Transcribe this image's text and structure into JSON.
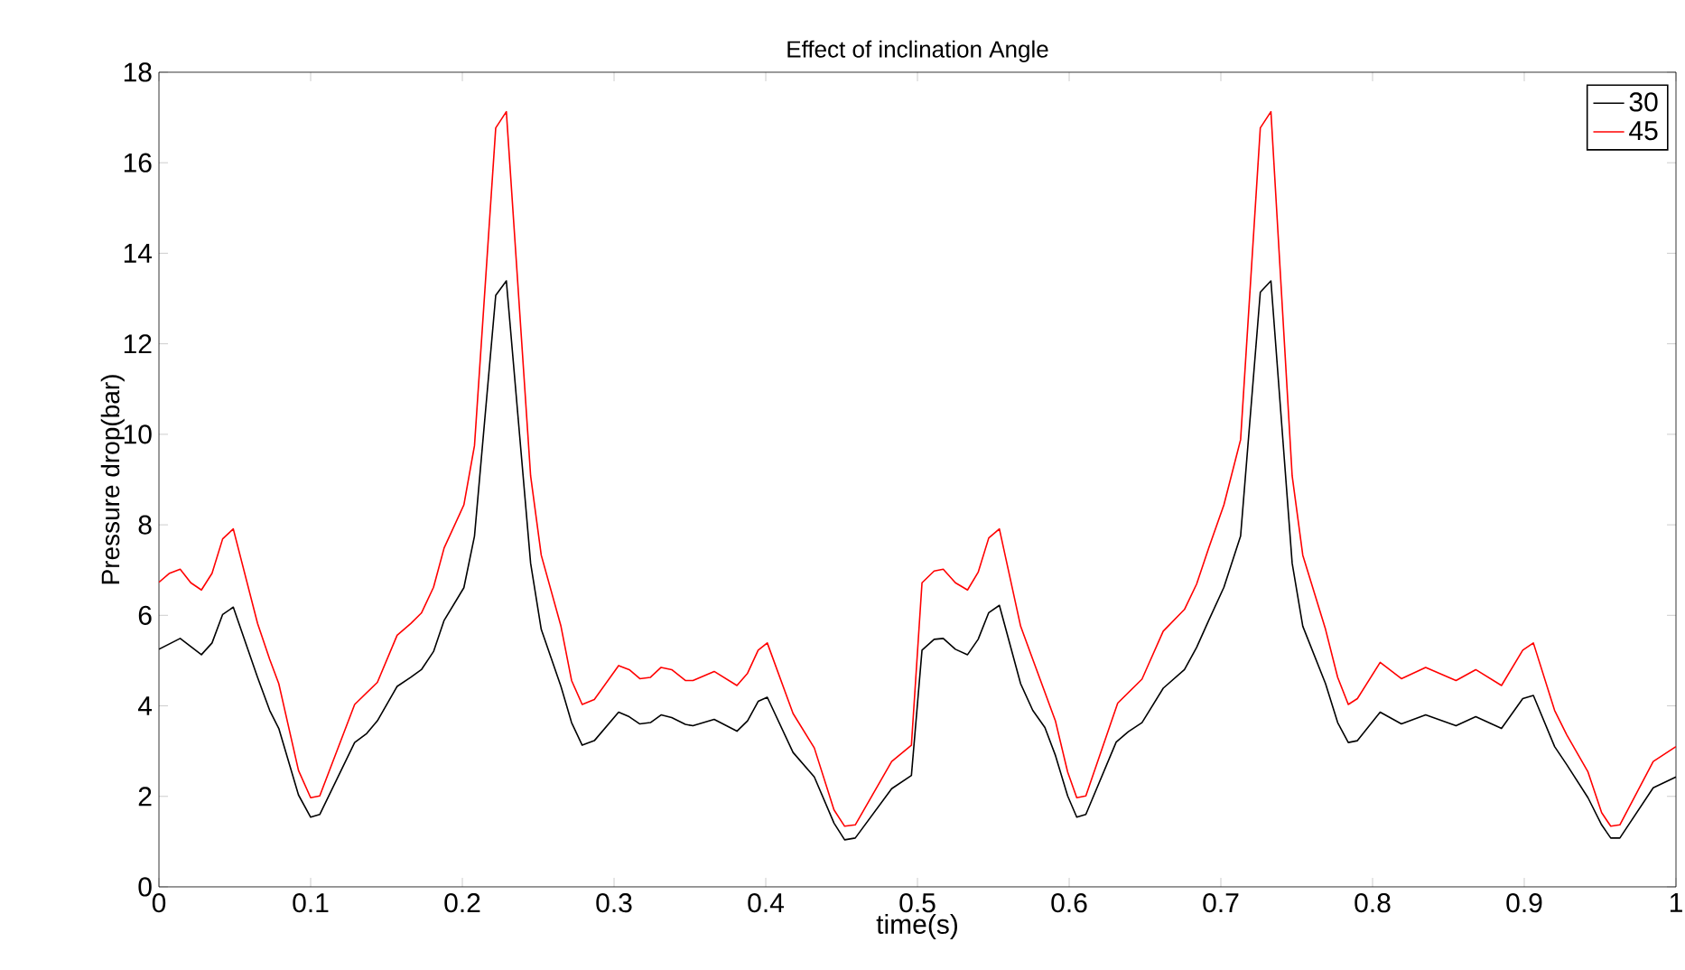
{
  "chart_data": {
    "type": "line",
    "title": "Effect of inclination Angle",
    "xlabel": "time(s)",
    "ylabel": "Pressure drop(bar)",
    "xlim": [
      0,
      1
    ],
    "ylim": [
      0,
      18
    ],
    "xticks": [
      0,
      0.1,
      0.2,
      0.3,
      0.4,
      0.5,
      0.6,
      0.7,
      0.8,
      0.9,
      1
    ],
    "yticks": [
      0,
      2,
      4,
      6,
      8,
      10,
      12,
      14,
      16,
      18
    ],
    "grid": false,
    "legend": "top right",
    "marker": "none",
    "line_style": "solid",
    "series": [
      {
        "name": "30",
        "color": "#000000",
        "x": [
          0,
          0.014,
          0.028,
          0.035,
          0.042,
          0.049,
          0.065,
          0.073,
          0.079,
          0.092,
          0.1,
          0.106,
          0.129,
          0.137,
          0.144,
          0.157,
          0.166,
          0.173,
          0.181,
          0.188,
          0.201,
          0.208,
          0.222,
          0.229,
          0.245,
          0.252,
          0.265,
          0.272,
          0.279,
          0.287,
          0.303,
          0.31,
          0.317,
          0.324,
          0.331,
          0.338,
          0.347,
          0.352,
          0.366,
          0.381,
          0.388,
          0.395,
          0.401,
          0.418,
          0.432,
          0.445,
          0.452,
          0.459,
          0.483,
          0.496,
          0.503,
          0.511,
          0.517,
          0.525,
          0.533,
          0.54,
          0.547,
          0.554,
          0.568,
          0.576,
          0.584,
          0.591,
          0.599,
          0.605,
          0.611,
          0.631,
          0.639,
          0.648,
          0.662,
          0.676,
          0.684,
          0.692,
          0.702,
          0.713,
          0.726,
          0.733,
          0.747,
          0.754,
          0.769,
          0.777,
          0.784,
          0.79,
          0.805,
          0.819,
          0.835,
          0.855,
          0.868,
          0.885,
          0.899,
          0.906,
          0.92,
          0.928,
          0.942,
          0.951,
          0.957,
          0.963,
          0.985,
          1.0
        ],
        "values": [
          5.25,
          5.49,
          5.13,
          5.39,
          6.02,
          6.18,
          4.63,
          3.9,
          3.5,
          2.03,
          1.54,
          1.6,
          3.19,
          3.39,
          3.67,
          4.43,
          4.63,
          4.8,
          5.2,
          5.89,
          6.61,
          7.75,
          13.07,
          13.39,
          7.15,
          5.69,
          4.43,
          3.63,
          3.13,
          3.23,
          3.86,
          3.76,
          3.6,
          3.63,
          3.8,
          3.74,
          3.59,
          3.56,
          3.7,
          3.44,
          3.67,
          4.1,
          4.19,
          2.97,
          2.43,
          1.41,
          1.04,
          1.08,
          2.17,
          2.46,
          5.23,
          5.47,
          5.49,
          5.25,
          5.13,
          5.47,
          6.06,
          6.22,
          4.49,
          3.9,
          3.52,
          2.9,
          2.01,
          1.54,
          1.6,
          3.2,
          3.43,
          3.63,
          4.39,
          4.8,
          5.29,
          5.89,
          6.62,
          7.75,
          13.14,
          13.39,
          7.15,
          5.76,
          4.49,
          3.63,
          3.19,
          3.23,
          3.86,
          3.6,
          3.8,
          3.56,
          3.76,
          3.5,
          4.16,
          4.23,
          3.1,
          2.7,
          1.97,
          1.37,
          1.08,
          1.08,
          2.19,
          2.43
        ]
      },
      {
        "name": "45",
        "color": "#ff0000",
        "x": [
          0,
          0.007,
          0.014,
          0.021,
          0.028,
          0.035,
          0.042,
          0.049,
          0.065,
          0.073,
          0.079,
          0.092,
          0.1,
          0.106,
          0.129,
          0.144,
          0.157,
          0.166,
          0.173,
          0.181,
          0.188,
          0.201,
          0.208,
          0.222,
          0.229,
          0.245,
          0.252,
          0.265,
          0.272,
          0.279,
          0.287,
          0.303,
          0.31,
          0.317,
          0.324,
          0.331,
          0.338,
          0.347,
          0.352,
          0.366,
          0.381,
          0.388,
          0.395,
          0.401,
          0.418,
          0.432,
          0.445,
          0.452,
          0.459,
          0.483,
          0.496,
          0.503,
          0.511,
          0.517,
          0.525,
          0.533,
          0.54,
          0.547,
          0.554,
          0.568,
          0.576,
          0.591,
          0.599,
          0.605,
          0.611,
          0.632,
          0.648,
          0.662,
          0.676,
          0.684,
          0.692,
          0.702,
          0.713,
          0.726,
          0.733,
          0.747,
          0.754,
          0.769,
          0.777,
          0.784,
          0.79,
          0.805,
          0.819,
          0.835,
          0.855,
          0.868,
          0.885,
          0.899,
          0.906,
          0.92,
          0.928,
          0.942,
          0.951,
          0.957,
          0.963,
          0.985,
          1.0
        ],
        "values": [
          6.73,
          6.93,
          7.02,
          6.72,
          6.56,
          6.93,
          7.69,
          7.91,
          5.82,
          5.03,
          4.49,
          2.57,
          1.97,
          2.01,
          4.03,
          4.52,
          5.56,
          5.82,
          6.05,
          6.62,
          7.49,
          8.44,
          9.75,
          16.77,
          17.13,
          9.08,
          7.33,
          5.76,
          4.56,
          4.03,
          4.14,
          4.89,
          4.8,
          4.6,
          4.63,
          4.85,
          4.8,
          4.56,
          4.56,
          4.76,
          4.45,
          4.72,
          5.23,
          5.39,
          3.83,
          3.07,
          1.7,
          1.34,
          1.37,
          2.77,
          3.13,
          6.72,
          6.98,
          7.02,
          6.72,
          6.56,
          6.95,
          7.71,
          7.91,
          5.76,
          5.03,
          3.66,
          2.54,
          1.97,
          2.01,
          4.06,
          4.59,
          5.65,
          6.13,
          6.69,
          7.49,
          8.44,
          9.88,
          16.77,
          17.13,
          9.08,
          7.33,
          5.69,
          4.63,
          4.03,
          4.16,
          4.96,
          4.6,
          4.85,
          4.56,
          4.8,
          4.45,
          5.23,
          5.39,
          3.9,
          3.36,
          2.54,
          1.64,
          1.34,
          1.37,
          2.77,
          3.1
        ]
      }
    ]
  }
}
